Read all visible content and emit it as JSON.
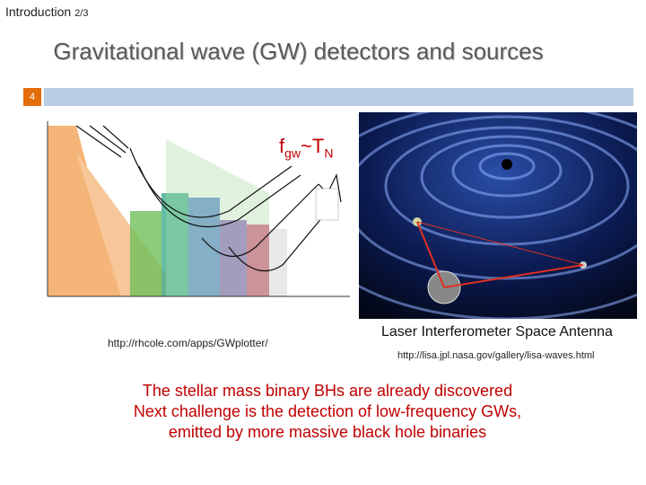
{
  "header": {
    "section": "Introduction",
    "page": "2/3"
  },
  "title": "Gravitational wave (GW) detectors and sources",
  "slide_number": "4",
  "annotation": {
    "f": "f",
    "gw": "gw",
    "tilde_t": "~T",
    "n": "N"
  },
  "left_figure": {
    "source": "http://rhcole.com/apps/GWplotter/"
  },
  "right_figure": {
    "caption": "Laser Interferometer Space Antenna",
    "source": "http://lisa.jpl.nasa.gov/gallery/lisa-waves.html"
  },
  "body": [
    "The stellar mass binary BHs are already discovered",
    "Next challenge is the detection of low-frequency GWs,",
    "emitted by more massive black hole binaries"
  ]
}
